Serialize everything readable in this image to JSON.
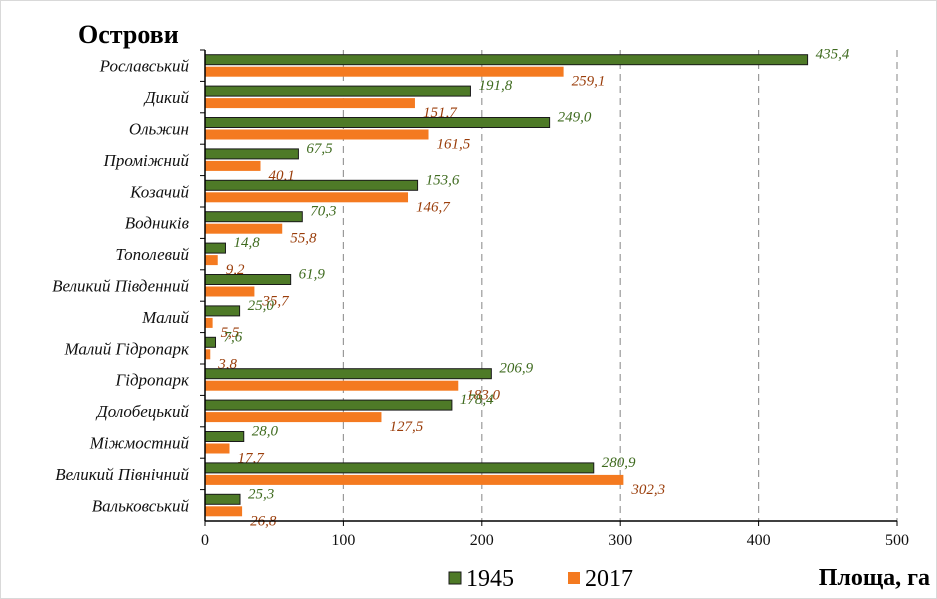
{
  "chart_data": {
    "type": "bar",
    "orientation": "horizontal",
    "title": "Острови",
    "xlabel": "Площа, га",
    "ylabel": "",
    "xlim": [
      0,
      500
    ],
    "x_ticks": [
      "0",
      "100",
      "200",
      "300",
      "400",
      "500"
    ],
    "grid": "vertical dashed",
    "legend_position": "bottom",
    "categories": [
      "Рославський",
      "Дикий",
      "Ольжин",
      "Проміжний",
      "Козачий",
      "Водників",
      "Тополевий",
      "Великий Південний",
      "Малий",
      "Малий Гідропарк",
      "Гідропарк",
      "Долобецький",
      "Міжмостний",
      "Великий Північний",
      "Вальковський"
    ],
    "series": [
      {
        "name": "1945",
        "color": "#4e7a27",
        "values": [
          435.4,
          191.8,
          249.0,
          67.5,
          153.6,
          70.3,
          14.8,
          61.9,
          25.0,
          7.6,
          206.9,
          178.4,
          28.0,
          280.9,
          25.3
        ],
        "labels": [
          "435,4",
          "191,8",
          "249,0",
          "67,5",
          "153,6",
          "70,3",
          "14,8",
          "61,9",
          "25,0",
          "7,6",
          "206,9",
          "178,4",
          "28,0",
          "280,9",
          "25,3"
        ]
      },
      {
        "name": "2017",
        "color": "#f47a20",
        "values": [
          259.1,
          151.7,
          161.5,
          40.1,
          146.7,
          55.8,
          9.2,
          35.7,
          5.5,
          3.8,
          183.0,
          127.5,
          17.7,
          302.3,
          26.8
        ],
        "labels": [
          "259,1",
          "151,7",
          "161,5",
          "40,1",
          "146,7",
          "55,8",
          "9,2",
          "35,7",
          "5,5",
          "3,8",
          "183,0",
          "127,5",
          "17,7",
          "302,3",
          "26,8"
        ]
      }
    ]
  }
}
